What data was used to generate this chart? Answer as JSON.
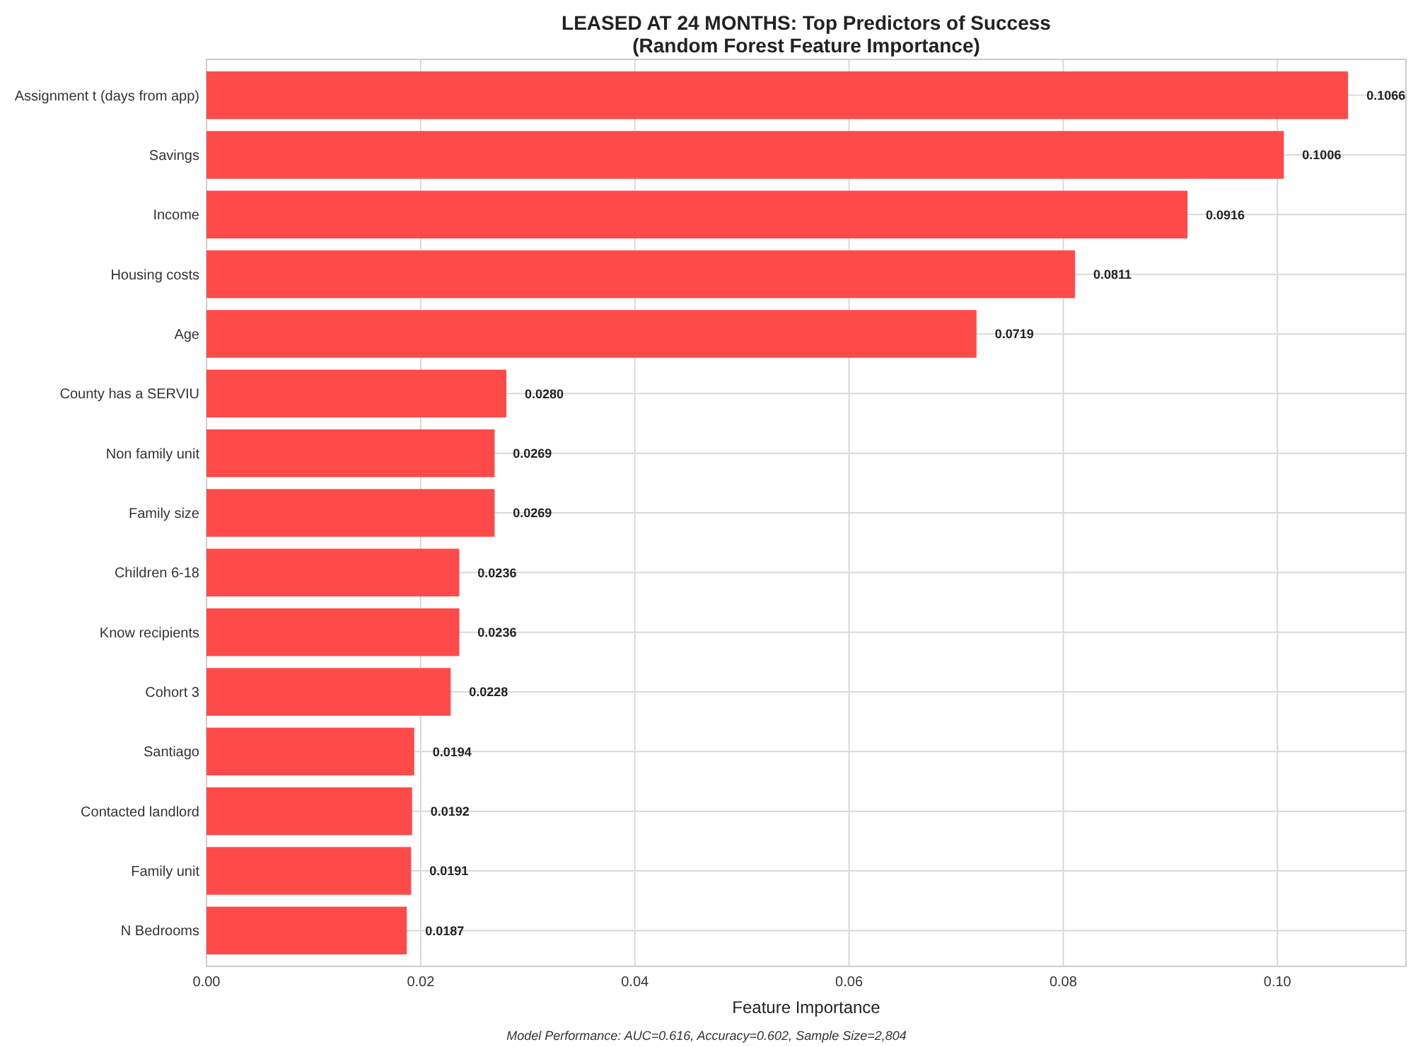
{
  "chart_data": {
    "type": "bar",
    "orientation": "horizontal",
    "title": "LEASED AT 24 MONTHS: Top Predictors of Success",
    "subtitle": "(Random Forest Feature Importance)",
    "xlabel": "Feature Importance",
    "categories": [
      "Assignment t (days from app)",
      "Savings",
      "Income",
      "Housing costs",
      "Age",
      "County has a SERVIU",
      "Non family unit",
      "Family size",
      "Children 6-18",
      "Know recipients",
      "Cohort 3",
      "Santiago",
      "Contacted landlord",
      "Family unit",
      "N Bedrooms"
    ],
    "values": [
      0.1066,
      0.1006,
      0.0916,
      0.0811,
      0.0719,
      0.028,
      0.0269,
      0.0269,
      0.0236,
      0.0236,
      0.0228,
      0.0194,
      0.0192,
      0.0191,
      0.0187
    ],
    "value_labels": [
      "0.1066",
      "0.1006",
      "0.0916",
      "0.0811",
      "0.0719",
      "0.0280",
      "0.0269",
      "0.0269",
      "0.0236",
      "0.0236",
      "0.0228",
      "0.0194",
      "0.0192",
      "0.0191",
      "0.0187"
    ],
    "color": "#ff4a4a",
    "xlim": [
      0,
      0.112
    ],
    "xticks": [
      {
        "value": 0,
        "label": "0.00"
      },
      {
        "value": 0.02,
        "label": "0.02"
      },
      {
        "value": 0.04,
        "label": "0.04"
      },
      {
        "value": 0.06,
        "label": "0.06"
      },
      {
        "value": 0.08,
        "label": "0.08"
      },
      {
        "value": 0.1,
        "label": "0.10"
      }
    ],
    "grid": true,
    "annotations": [
      "Model Performance: AUC=0.616, Accuracy=0.602, Sample Size=2,804"
    ]
  }
}
